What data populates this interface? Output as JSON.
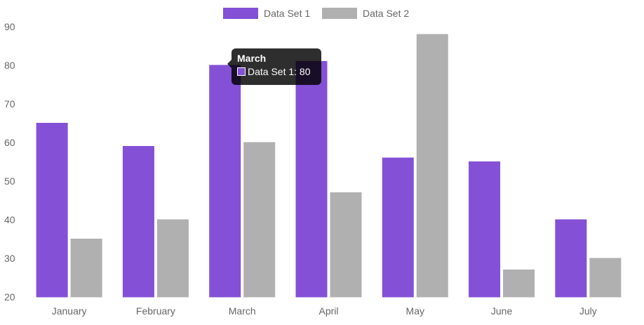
{
  "chart_data": {
    "type": "bar",
    "categories": [
      "January",
      "February",
      "March",
      "April",
      "May",
      "June",
      "July"
    ],
    "series": [
      {
        "name": "Data Set 1",
        "color": "#8450d6",
        "values": [
          65,
          59,
          80,
          81,
          56,
          55,
          40
        ]
      },
      {
        "name": "Data Set 2",
        "color": "#b0b0b0",
        "values": [
          35,
          40,
          60,
          47,
          88,
          27,
          30
        ]
      }
    ],
    "ylim": [
      20,
      90
    ],
    "yticks": [
      90,
      80,
      70,
      60,
      50,
      40,
      30,
      20
    ],
    "legend_position": "top-center",
    "grid": false
  },
  "tooltip": {
    "title": "March",
    "label": "Data Set 1: 80",
    "color": "#8450d6"
  }
}
